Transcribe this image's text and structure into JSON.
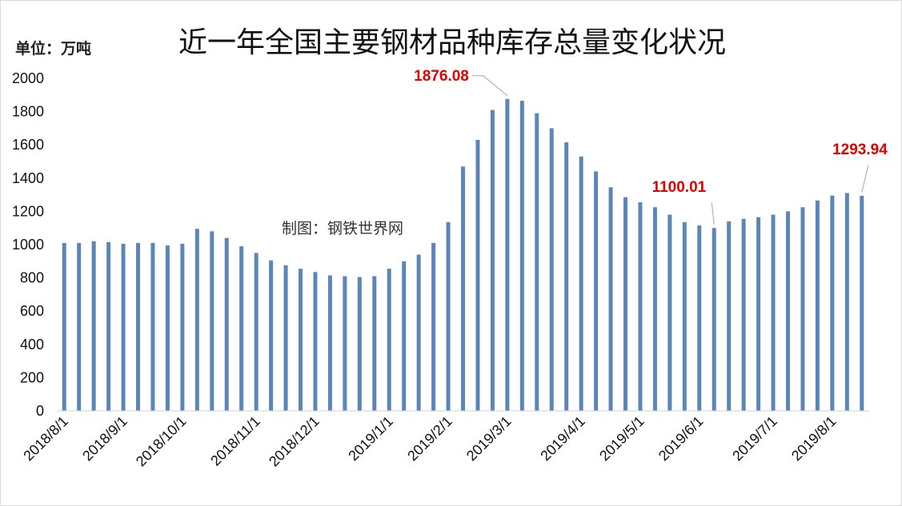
{
  "header": {
    "unit_label": "单位：万吨",
    "watermark": "制图：钢铁世界网"
  },
  "colors": {
    "bar": "#5b87b8",
    "annotation_text": "#e00000",
    "leader_line": "#a6a6a6"
  },
  "chart_data": {
    "type": "bar",
    "title": "近一年全国主要钢材品种库存总量变化状况",
    "xlabel": "",
    "ylabel": "",
    "ylim": [
      0,
      2000
    ],
    "yticks": [
      0,
      200,
      400,
      600,
      800,
      1000,
      1200,
      1400,
      1600,
      1800,
      2000
    ],
    "grid": false,
    "legend": "none",
    "series": [
      {
        "values": [
          1010,
          1010,
          1020,
          1015,
          1005,
          1010,
          1010,
          995,
          1005,
          1095,
          1080,
          1040,
          990,
          950,
          905,
          875,
          855,
          835,
          815,
          810,
          805,
          810,
          855,
          900,
          940,
          1010,
          1135,
          1470,
          1630,
          1810,
          1876.08,
          1865,
          1790,
          1700,
          1615,
          1530,
          1440,
          1345,
          1285,
          1255,
          1225,
          1180,
          1135,
          1115,
          1100.01,
          1140,
          1155,
          1165,
          1180,
          1200,
          1225,
          1265,
          1295,
          1310,
          1293.94
        ]
      }
    ],
    "category_labels": [
      "2018/8/1",
      "2018/9/1",
      "2018/10/1",
      "2018/11/1",
      "2018/12/1",
      "2019/1/1",
      "2019/2/1",
      "2019/3/1",
      "2019/4/1",
      "2019/5/1",
      "2019/6/1",
      "2019/7/1",
      "2019/8/1"
    ],
    "category_label_bar_index": [
      0,
      4,
      8,
      13,
      17,
      22,
      26,
      30,
      35,
      39,
      43,
      48,
      52
    ],
    "annotations": [
      {
        "text": "1876.08",
        "bar_index": 30,
        "color": "#e00000"
      },
      {
        "text": "1100.01",
        "bar_index": 44,
        "color": "#e00000"
      },
      {
        "text": "1293.94",
        "bar_index": 54,
        "color": "#e00000"
      }
    ]
  }
}
